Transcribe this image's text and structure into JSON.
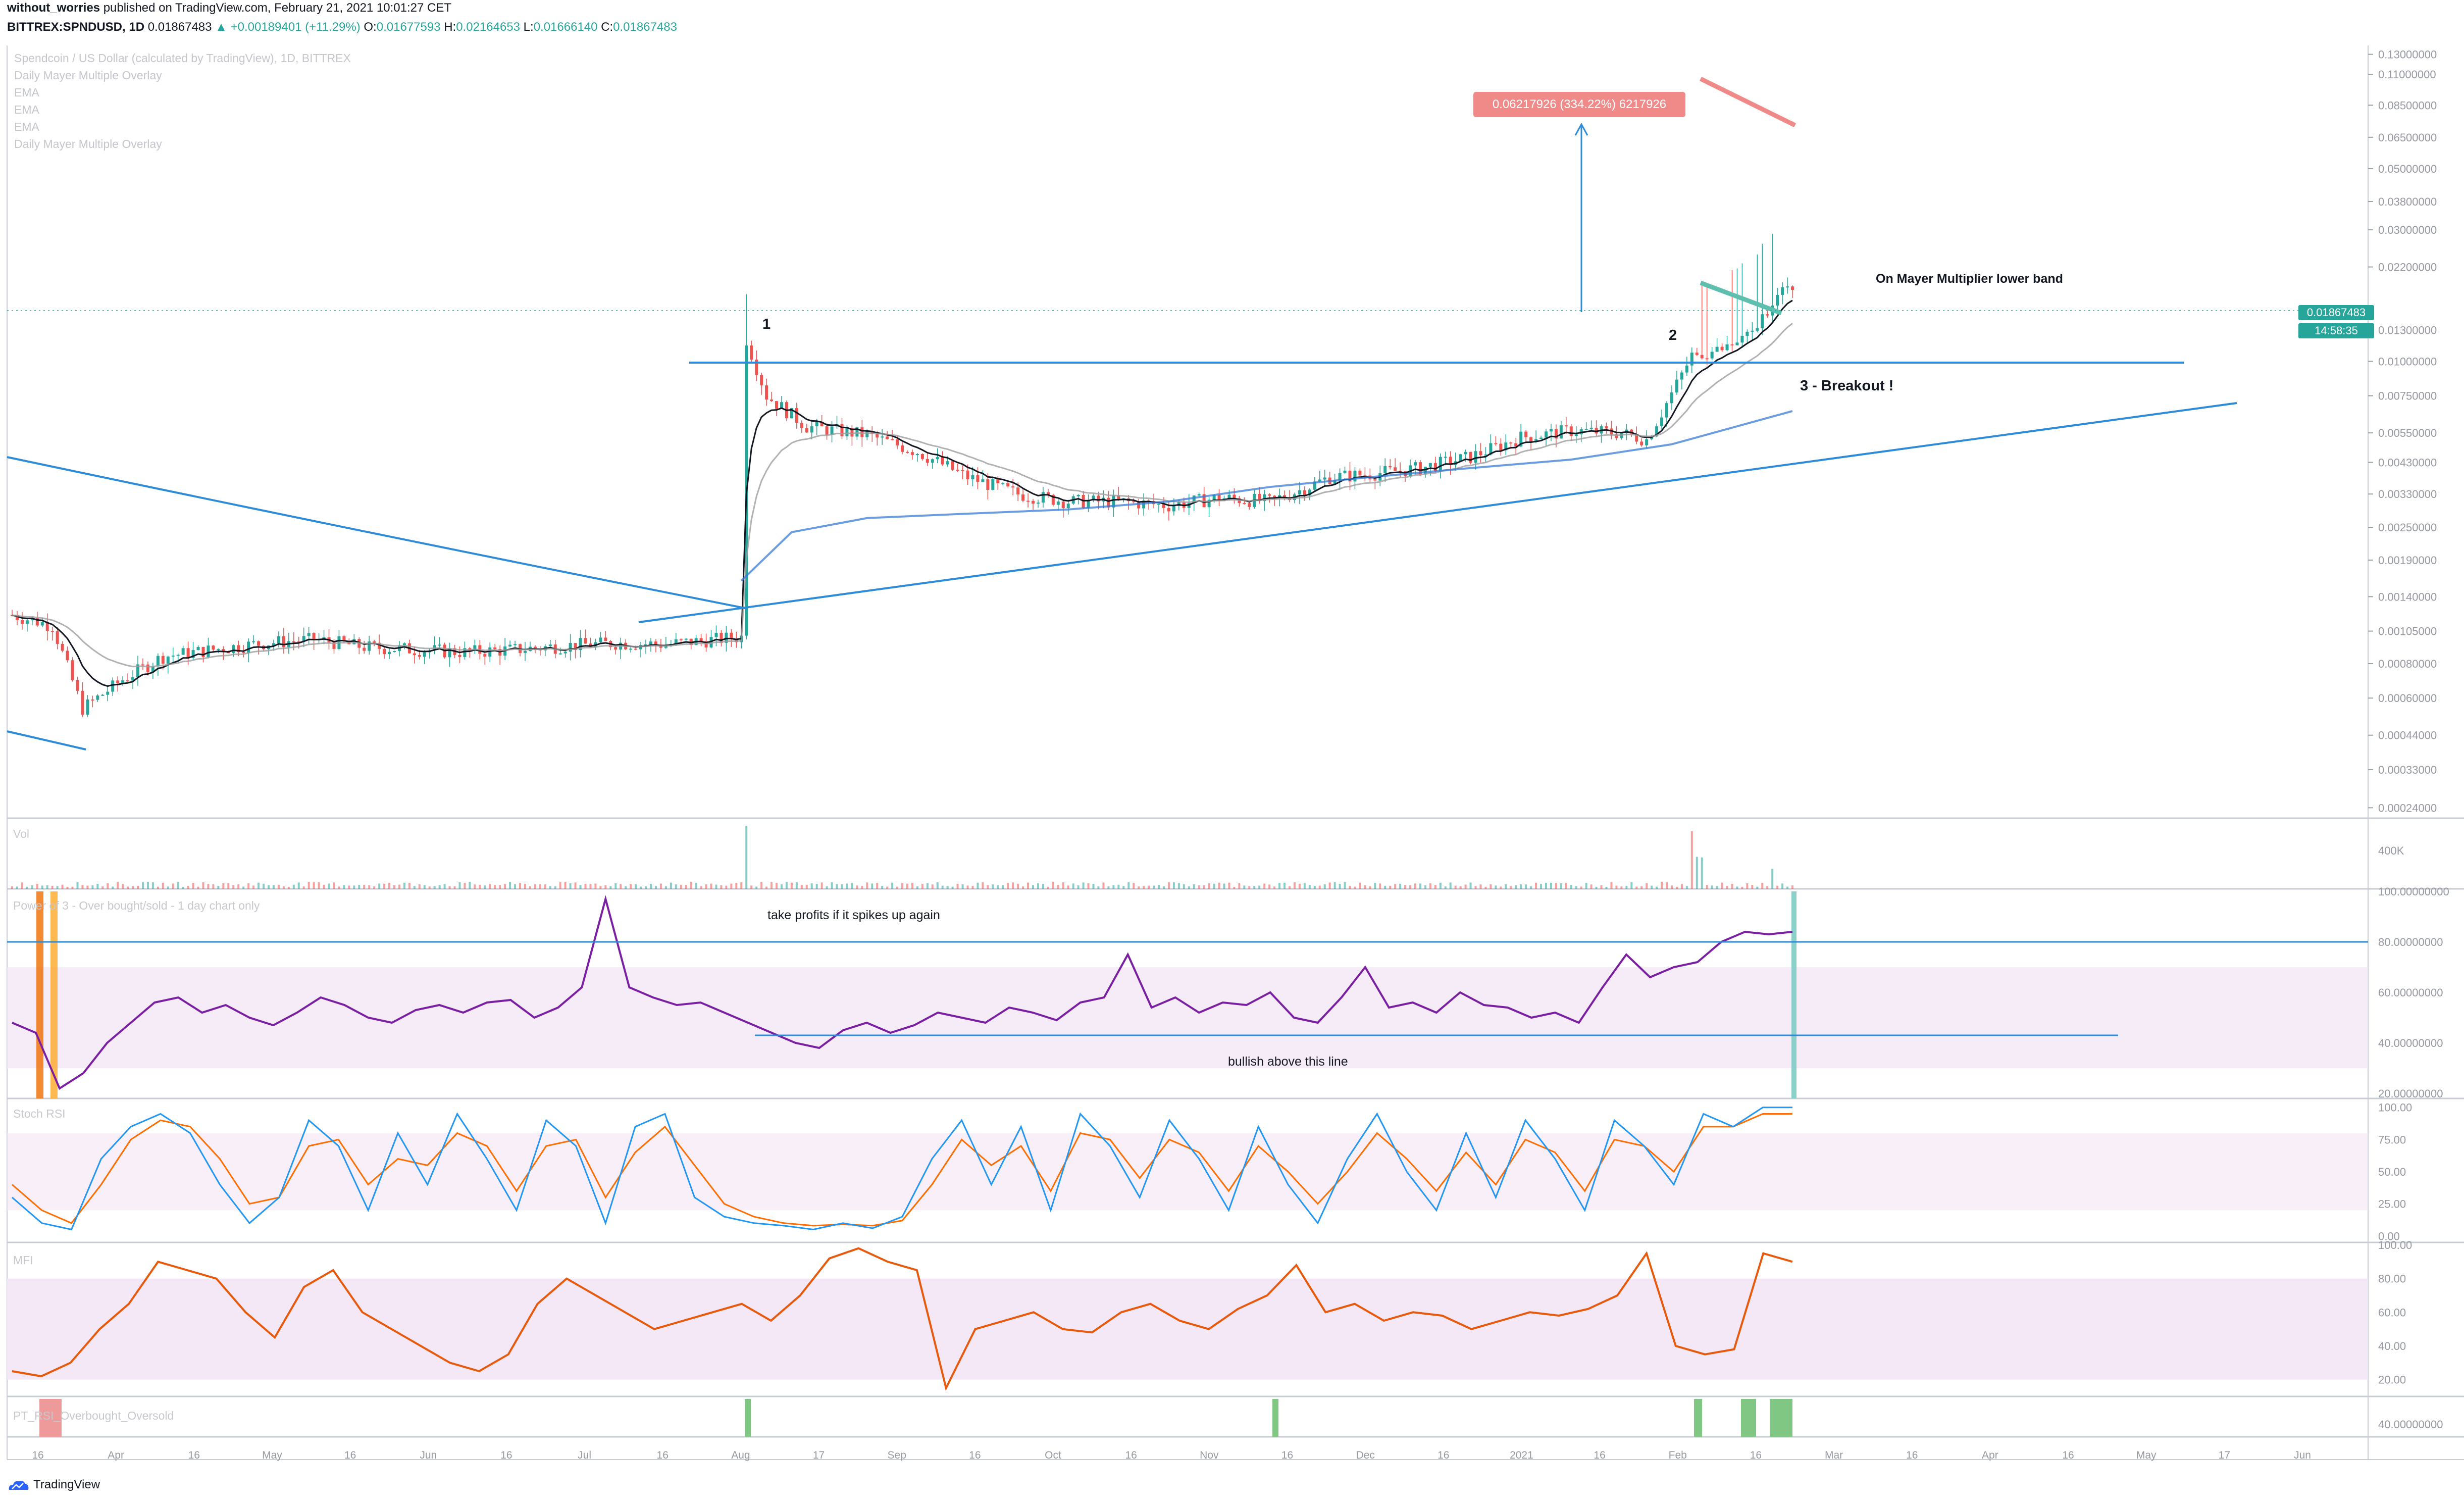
{
  "header": {
    "line1_user": "without_worries",
    "line1_rest": " published on TradingView.com, February 21, 2021 10:01:27 CET",
    "symbol": "BITTREX:SPNDUSD, 1D",
    "last": "0.01867483",
    "change": "+0.00189401 (+11.29%)",
    "open_label": "O:",
    "open": "0.01677593",
    "high_label": "H:",
    "high": "0.02164653",
    "low_label": "L:",
    "low": "0.01666140",
    "close_label": "C:",
    "close": "0.01867483"
  },
  "overlay_legend": [
    "Spendcoin / US Dollar (calculated by TradingView), 1D, BITTREX",
    "Daily Mayer Multiple Overlay",
    "EMA",
    "EMA",
    "EMA",
    "Daily Mayer Multiple Overlay"
  ],
  "pane_labels": {
    "volume": "Vol",
    "power": "Power of 3 - Over bought/sold - 1 day chart only",
    "stoch": "Stoch RSI",
    "mfi": "MFI",
    "pt": "PT_RSI_Overbought_Oversold"
  },
  "annotations": {
    "label_1": "1",
    "label_2": "2",
    "breakout": "3 - Breakout !",
    "mayer_note": "On Mayer Multiplier lower band",
    "measure": "0.06217926 (334.22%) 6217926",
    "take_profits": "take profits if it spikes up again",
    "bullish": "bullish above this line"
  },
  "price_tags": {
    "last_price": "0.01867483",
    "countdown": "14:58:35"
  },
  "branding": "TradingView",
  "colors": {
    "up": "#26a69a",
    "down": "#ef5350",
    "trendline": "#2e8bd8",
    "ema_fast": "#131722",
    "ema_slow": "#9e9e9e",
    "mayer_band": "#3a7bd5",
    "rsi": "#7b1fa2",
    "stoch_k": "#2196f3",
    "stoch_d": "#ff6d00",
    "mfi": "#e8590c",
    "band_fill": "#f3e5f5",
    "measure_tag": "#ef8a88"
  },
  "chart_data": {
    "type": "candlestick",
    "x_tick_labels": [
      "16",
      "Apr",
      "16",
      "May",
      "16",
      "Jun",
      "16",
      "Jul",
      "16",
      "Aug",
      "17",
      "Sep",
      "16",
      "Oct",
      "16",
      "Nov",
      "16",
      "Dec",
      "16",
      "2021",
      "16",
      "Feb",
      "16",
      "Mar",
      "16",
      "Apr",
      "16",
      "May",
      "17",
      "Jun"
    ],
    "price_axis": {
      "scale": "log",
      "ticks": [
        "0.13000000",
        "0.11000000",
        "0.08500000",
        "0.06500000",
        "0.05000000",
        "0.03800000",
        "0.03000000",
        "0.02200000",
        "0.01300000",
        "0.01000000",
        "0.00750000",
        "0.00550000",
        "0.00430000",
        "0.00330000",
        "0.00250000",
        "0.00190000",
        "0.00140000",
        "0.00105000",
        "0.00080000",
        "0.00060000",
        "0.00044000",
        "0.00033000",
        "0.00024000"
      ],
      "range": [
        0.00022,
        0.14
      ]
    },
    "volume_axis": {
      "ticks": [
        "400K"
      ]
    },
    "power_axis": {
      "ticks": [
        "100.00000000",
        "80.00000000",
        "60.00000000",
        "40.00000000",
        "20.00000000"
      ],
      "range": [
        18,
        100
      ]
    },
    "stoch_axis": {
      "ticks": [
        "100.00",
        "75.00",
        "50.00",
        "25.00",
        "0.00"
      ],
      "range": [
        -5,
        105
      ]
    },
    "mfi_axis": {
      "ticks": [
        "100.00",
        "80.00",
        "60.00",
        "40.00",
        "20.00"
      ],
      "range": [
        10,
        100
      ]
    },
    "pt_axis": {
      "ticks": [
        "40.00000000"
      ]
    },
    "price_path": [
      [
        0,
        0.0012
      ],
      [
        8,
        0.0011
      ],
      [
        14,
        0.00055
      ],
      [
        22,
        0.0007
      ],
      [
        30,
        0.00085
      ],
      [
        40,
        0.0009
      ],
      [
        50,
        0.00095
      ],
      [
        60,
        0.00098
      ],
      [
        70,
        0.00092
      ],
      [
        80,
        0.0009
      ],
      [
        90,
        0.00088
      ],
      [
        100,
        0.0009
      ],
      [
        110,
        0.00093
      ],
      [
        120,
        0.00095
      ],
      [
        130,
        0.00094
      ],
      [
        140,
        0.00098
      ],
      [
        145,
        0.001
      ],
      [
        146,
        0.012
      ],
      [
        150,
        0.0075
      ],
      [
        158,
        0.0058
      ],
      [
        170,
        0.0054
      ],
      [
        180,
        0.0047
      ],
      [
        190,
        0.0038
      ],
      [
        200,
        0.0033
      ],
      [
        210,
        0.0031
      ],
      [
        220,
        0.0031
      ],
      [
        230,
        0.003
      ],
      [
        240,
        0.0032
      ],
      [
        250,
        0.0031
      ],
      [
        256,
        0.0034
      ],
      [
        262,
        0.0038
      ],
      [
        270,
        0.0039
      ],
      [
        280,
        0.0041
      ],
      [
        290,
        0.0045
      ],
      [
        300,
        0.0053
      ],
      [
        310,
        0.0056
      ],
      [
        320,
        0.0055
      ],
      [
        325,
        0.0052
      ],
      [
        328,
        0.0065
      ],
      [
        334,
        0.0105
      ],
      [
        340,
        0.011
      ],
      [
        346,
        0.0125
      ],
      [
        350,
        0.0167
      ],
      [
        354,
        0.0187
      ]
    ],
    "mayer_band_path": [
      [
        145,
        0.0016
      ],
      [
        155,
        0.0024
      ],
      [
        170,
        0.0027
      ],
      [
        190,
        0.0028
      ],
      [
        210,
        0.0029
      ],
      [
        230,
        0.0031
      ],
      [
        250,
        0.0035
      ],
      [
        270,
        0.0038
      ],
      [
        290,
        0.0041
      ],
      [
        310,
        0.0044
      ],
      [
        330,
        0.005
      ],
      [
        354,
        0.0066
      ]
    ],
    "power_of_3": [
      48,
      44,
      22,
      28,
      40,
      48,
      56,
      58,
      52,
      55,
      50,
      47,
      52,
      58,
      55,
      50,
      48,
      53,
      55,
      52,
      56,
      57,
      50,
      54,
      62,
      97,
      62,
      58,
      55,
      56,
      52,
      48,
      44,
      40,
      38,
      45,
      48,
      44,
      47,
      52,
      50,
      48,
      54,
      52,
      49,
      56,
      58,
      75,
      54,
      58,
      52,
      56,
      55,
      60,
      50,
      48,
      58,
      70,
      54,
      56,
      52,
      60,
      55,
      54,
      50,
      52,
      48,
      62,
      75,
      66,
      70,
      72,
      80,
      84,
      83,
      84
    ],
    "stoch_k": [
      30,
      10,
      5,
      60,
      85,
      95,
      80,
      40,
      10,
      30,
      90,
      70,
      20,
      80,
      40,
      95,
      60,
      20,
      90,
      70,
      10,
      85,
      95,
      30,
      15,
      10,
      8,
      5,
      10,
      6,
      15,
      60,
      90,
      40,
      85,
      20,
      95,
      70,
      30,
      90,
      60,
      20,
      85,
      40,
      10,
      60,
      95,
      50,
      20,
      80,
      30,
      90,
      60,
      20,
      90,
      70,
      40,
      95,
      85,
      100,
      100
    ],
    "stoch_d": [
      40,
      20,
      10,
      40,
      75,
      90,
      85,
      60,
      25,
      30,
      70,
      75,
      40,
      60,
      55,
      80,
      70,
      35,
      70,
      75,
      30,
      65,
      85,
      55,
      25,
      15,
      10,
      8,
      9,
      8,
      12,
      40,
      75,
      55,
      70,
      35,
      80,
      75,
      45,
      75,
      65,
      35,
      70,
      50,
      25,
      50,
      80,
      60,
      35,
      65,
      40,
      75,
      65,
      35,
      75,
      70,
      50,
      85,
      85,
      95,
      95
    ],
    "mfi": [
      25,
      22,
      30,
      50,
      65,
      90,
      85,
      80,
      60,
      45,
      75,
      85,
      60,
      50,
      40,
      30,
      25,
      35,
      65,
      80,
      70,
      60,
      50,
      55,
      60,
      65,
      55,
      70,
      92,
      98,
      90,
      85,
      15,
      50,
      55,
      60,
      50,
      48,
      60,
      65,
      55,
      50,
      62,
      70,
      88,
      60,
      65,
      55,
      60,
      58,
      50,
      55,
      60,
      58,
      62,
      70,
      95,
      40,
      35,
      38,
      95,
      90
    ],
    "pt_green_marks": [
      "Aug",
      "Nov",
      "Feb"
    ],
    "pt_red_marks": [
      "Mar"
    ]
  }
}
